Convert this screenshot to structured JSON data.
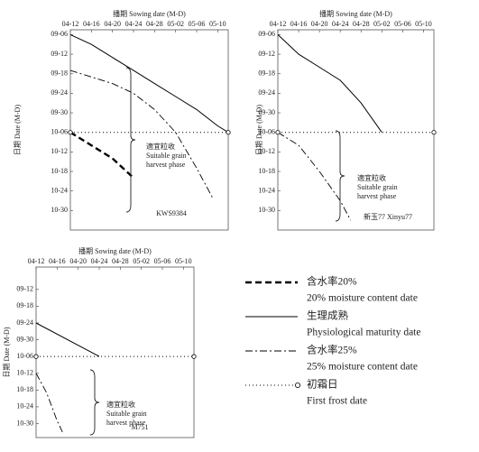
{
  "chart_data": [
    {
      "type": "line",
      "title": "播期 Sowing date (M-D)",
      "ylabel": "日期 Date (M-D)",
      "label": "KWS9384",
      "annotation": [
        "適宜粒收",
        "Suitable grain",
        "harvest phase"
      ],
      "xlim": [
        102,
        132
      ],
      "ylim": [
        247.5,
        309
      ],
      "y_inverted": true,
      "xticks": [
        {
          "value": 102,
          "label": "04-12"
        },
        {
          "value": 106,
          "label": "04-16"
        },
        {
          "value": 110,
          "label": "04-20"
        },
        {
          "value": 114,
          "label": "04-24"
        },
        {
          "value": 118,
          "label": "04-28"
        },
        {
          "value": 122,
          "label": "05-02"
        },
        {
          "value": 126,
          "label": "05-06"
        },
        {
          "value": 130,
          "label": "05-10"
        }
      ],
      "yticks": [
        {
          "value": 249,
          "label": "09-06"
        },
        {
          "value": 255,
          "label": "09-12"
        },
        {
          "value": 261,
          "label": "09-18"
        },
        {
          "value": 267,
          "label": "09-24"
        },
        {
          "value": 273,
          "label": "09-30"
        },
        {
          "value": 279,
          "label": "10-06"
        },
        {
          "value": 285,
          "label": "10-12"
        },
        {
          "value": 291,
          "label": "10-18"
        },
        {
          "value": 297,
          "label": "10-24"
        },
        {
          "value": 303,
          "label": "10-30"
        }
      ],
      "series": [
        {
          "style": "solid",
          "color": "#000000",
          "x": [
            102,
            106,
            110,
            114,
            118,
            122,
            126,
            130,
            132
          ],
          "values": [
            249,
            252,
            256,
            260,
            264,
            268,
            272,
            277,
            279
          ]
        },
        {
          "style": "dash-dot",
          "color": "#000000",
          "x": [
            102,
            106,
            110,
            114,
            118,
            122,
            126,
            129
          ],
          "values": [
            260,
            262,
            264,
            267,
            272,
            279,
            290,
            299
          ]
        },
        {
          "style": "dashed-bold",
          "color": "#000000",
          "x": [
            102,
            106,
            110,
            114
          ],
          "values": [
            279,
            283,
            287,
            293
          ]
        },
        {
          "style": "dotted",
          "color": "#000000",
          "x": [
            102,
            132
          ],
          "values": [
            279,
            279
          ]
        }
      ]
    },
    {
      "type": "line",
      "title": "播期 Sowing date (M-D)",
      "ylabel": "日期 Date (M-D)",
      "label": "新玉77 Xinyu77",
      "annotation": [
        "適宜粒收",
        "Suitable grain",
        "harvest phase"
      ],
      "xlim": [
        102,
        132
      ],
      "ylim": [
        247.5,
        309
      ],
      "y_inverted": true,
      "xticks": [
        {
          "value": 102,
          "label": "04-12"
        },
        {
          "value": 106,
          "label": "04-16"
        },
        {
          "value": 110,
          "label": "04-20"
        },
        {
          "value": 114,
          "label": "04-24"
        },
        {
          "value": 118,
          "label": "04-28"
        },
        {
          "value": 122,
          "label": "05-02"
        },
        {
          "value": 126,
          "label": "05-06"
        },
        {
          "value": 130,
          "label": "05-10"
        }
      ],
      "yticks": [
        {
          "value": 249,
          "label": "09-06"
        },
        {
          "value": 255,
          "label": "09-12"
        },
        {
          "value": 261,
          "label": "09-18"
        },
        {
          "value": 267,
          "label": "09-24"
        },
        {
          "value": 273,
          "label": "09-30"
        },
        {
          "value": 279,
          "label": "10-06"
        },
        {
          "value": 285,
          "label": "10-12"
        },
        {
          "value": 291,
          "label": "10-18"
        },
        {
          "value": 297,
          "label": "10-24"
        },
        {
          "value": 303,
          "label": "10-30"
        }
      ],
      "series": [
        {
          "style": "solid",
          "color": "#000000",
          "x": [
            102,
            106,
            110,
            114,
            118,
            122
          ],
          "values": [
            249,
            255,
            259,
            263,
            270,
            279
          ]
        },
        {
          "style": "dash-dot",
          "color": "#000000",
          "x": [
            102,
            106,
            110,
            114,
            116
          ],
          "values": [
            279,
            283,
            291,
            300,
            306
          ]
        },
        {
          "style": "dotted",
          "color": "#000000",
          "x": [
            102,
            132
          ],
          "values": [
            279,
            279
          ]
        }
      ]
    },
    {
      "type": "line",
      "title": "播期 Sowing date (M-D)",
      "ylabel": "日期 Date (M-D)",
      "label": "M751",
      "annotation": [
        "適宜粒收",
        "Suitable grain",
        "harvest phase"
      ],
      "xlim": [
        102,
        132
      ],
      "ylim": [
        247,
        308
      ],
      "y_inverted": true,
      "xticks": [
        {
          "value": 102,
          "label": "04-12"
        },
        {
          "value": 106,
          "label": "04-16"
        },
        {
          "value": 110,
          "label": "04-20"
        },
        {
          "value": 114,
          "label": "04-24"
        },
        {
          "value": 118,
          "label": "04-28"
        },
        {
          "value": 122,
          "label": "05-02"
        },
        {
          "value": 126,
          "label": "05-06"
        },
        {
          "value": 130,
          "label": "05-10"
        }
      ],
      "yticks": [
        {
          "value": 255,
          "label": "09-12"
        },
        {
          "value": 261,
          "label": "09-18"
        },
        {
          "value": 267,
          "label": "09-24"
        },
        {
          "value": 273,
          "label": "09-30"
        },
        {
          "value": 279,
          "label": "10-06"
        },
        {
          "value": 285,
          "label": "10-12"
        },
        {
          "value": 291,
          "label": "10-18"
        },
        {
          "value": 297,
          "label": "10-24"
        },
        {
          "value": 303,
          "label": "10-30"
        }
      ],
      "series": [
        {
          "style": "solid",
          "color": "#000000",
          "x": [
            102,
            114
          ],
          "values": [
            267,
            279
          ]
        },
        {
          "style": "dash-dot",
          "color": "#000000",
          "x": [
            102,
            104,
            106,
            107
          ],
          "values": [
            285,
            292,
            302,
            306
          ]
        },
        {
          "style": "dotted",
          "color": "#000000",
          "x": [
            102,
            132
          ],
          "values": [
            279,
            279
          ]
        }
      ]
    }
  ],
  "legend": [
    {
      "style": "dashed-bold",
      "cn": "含水率20%",
      "en": "20% moisture content date"
    },
    {
      "style": "solid",
      "cn": "生理成熟",
      "en": "Physiological maturity date"
    },
    {
      "style": "dash-dot",
      "cn": "含水率25%",
      "en": "25% moisture content date"
    },
    {
      "style": "dotted",
      "cn": "初霜日",
      "en": "First frost date"
    }
  ]
}
